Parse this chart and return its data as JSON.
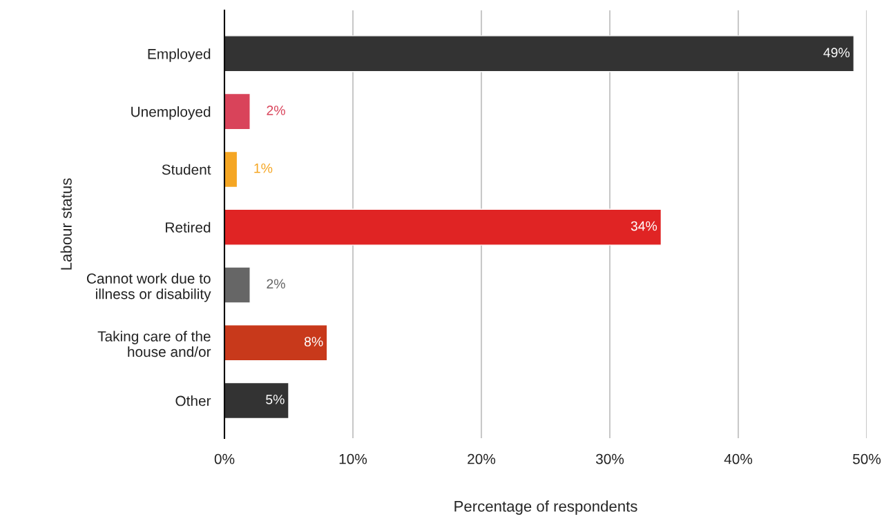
{
  "chart_data": {
    "type": "bar",
    "orientation": "horizontal",
    "xlabel": "Percentage of respondents",
    "ylabel": "Labour status",
    "categories": [
      "Employed",
      "Unemployed",
      "Student",
      "Retired",
      "Cannot work due to\nillness or disability",
      "Taking care of the\nhouse and/or",
      "Other"
    ],
    "values": [
      49,
      2,
      1,
      34,
      2,
      8,
      5
    ],
    "colors": [
      "#333333",
      "#d9435a",
      "#f5a623",
      "#e02424",
      "#666666",
      "#c8391b",
      "#333333"
    ],
    "value_labels": [
      "49%",
      "2%",
      "1%",
      "34%",
      "2%",
      "8%",
      "5%"
    ],
    "xlim": [
      0,
      50
    ],
    "xticks": [
      {
        "value": 0,
        "label": "0%"
      },
      {
        "value": 10,
        "label": "10%"
      },
      {
        "value": 20,
        "label": "20%"
      },
      {
        "value": 30,
        "label": "30%"
      },
      {
        "value": 40,
        "label": "40%"
      },
      {
        "value": 50,
        "label": "50%"
      }
    ],
    "grid": "x",
    "legend": false
  }
}
